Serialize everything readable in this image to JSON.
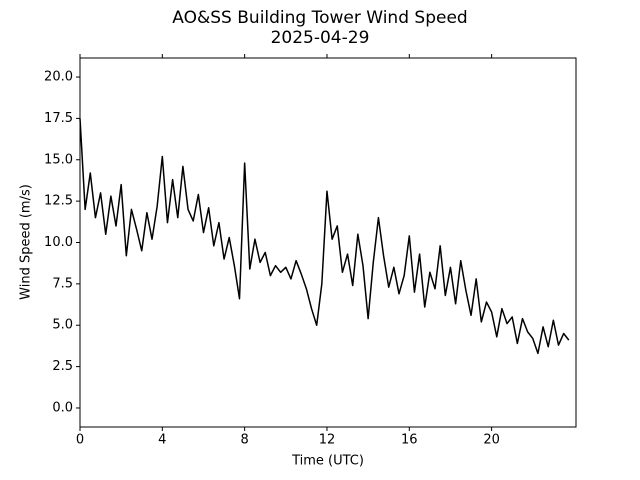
{
  "chart_data": {
    "type": "line",
    "title": "AO&SS Building Tower Wind Speed",
    "subtitle": "2025-04-29",
    "x_label": "Time (UTC)",
    "y_label": "Wind Speed (m/s)",
    "x": [
      0,
      0.25,
      0.5,
      0.75,
      1,
      1.25,
      1.5,
      1.75,
      2,
      2.25,
      2.5,
      2.75,
      3,
      3.25,
      3.5,
      3.75,
      4,
      4.25,
      4.5,
      4.75,
      5,
      5.25,
      5.5,
      5.75,
      6,
      6.25,
      6.5,
      6.75,
      7,
      7.25,
      7.5,
      7.75,
      8,
      8.25,
      8.5,
      8.75,
      9,
      9.25,
      9.5,
      9.75,
      10,
      10.25,
      10.5,
      10.75,
      11,
      11.25,
      11.5,
      11.75,
      12,
      12.25,
      12.5,
      12.75,
      13,
      13.25,
      13.5,
      13.75,
      14,
      14.25,
      14.5,
      14.75,
      15,
      15.25,
      15.5,
      15.75,
      16,
      16.25,
      16.5,
      16.75,
      17,
      17.25,
      17.5,
      17.75,
      18,
      18.25,
      18.5,
      18.75,
      19,
      19.25,
      19.5,
      19.75,
      20,
      20.25,
      20.5,
      20.75,
      21,
      21.25,
      21.5,
      21.75,
      22,
      22.25,
      22.5,
      22.75,
      23,
      23.25,
      23.5,
      23.75
    ],
    "series": [
      {
        "color": "#000000",
        "values": [
          17.5,
          12.0,
          14.2,
          11.5,
          13.0,
          10.5,
          12.8,
          11.0,
          13.5,
          9.2,
          12.0,
          10.8,
          9.5,
          11.8,
          10.2,
          12.2,
          15.2,
          11.2,
          13.8,
          11.5,
          14.6,
          12.0,
          11.3,
          12.9,
          10.6,
          12.1,
          9.8,
          11.2,
          9.0,
          10.3,
          8.6,
          6.6,
          14.8,
          8.4,
          10.2,
          8.8,
          9.4,
          8.0,
          8.6,
          8.2,
          8.5,
          7.8,
          8.9,
          8.1,
          7.2,
          6.0,
          5.0,
          7.5,
          13.1,
          10.2,
          11.0,
          8.2,
          9.3,
          7.4,
          10.5,
          8.6,
          5.4,
          8.8,
          11.5,
          9.2,
          7.3,
          8.5,
          6.9,
          8.0,
          10.4,
          7.0,
          9.3,
          6.1,
          8.2,
          7.2,
          9.8,
          6.8,
          8.5,
          6.3,
          8.9,
          7.1,
          5.6,
          7.8,
          5.2,
          6.4,
          5.8,
          4.3,
          6.0,
          5.1,
          5.5,
          3.9,
          5.4,
          4.6,
          4.2,
          3.3,
          4.9,
          3.7,
          5.3,
          3.8,
          4.5,
          4.1
        ]
      }
    ],
    "xlim": [
      0,
      24.1
    ],
    "ylim": [
      -1.15,
      21.15
    ],
    "xticks": [
      0,
      4,
      8,
      12,
      16,
      20
    ],
    "yticks": [
      {
        "value": 0,
        "label": "0.0"
      },
      {
        "value": 2.5,
        "label": "2.5"
      },
      {
        "value": 5,
        "label": "5.0"
      },
      {
        "value": 7.5,
        "label": "7.5"
      },
      {
        "value": 10,
        "label": "10.0"
      },
      {
        "value": 12.5,
        "label": "12.5"
      },
      {
        "value": 15,
        "label": "15.0"
      },
      {
        "value": 17.5,
        "label": "17.5"
      },
      {
        "value": 20,
        "label": "20.0"
      }
    ],
    "grid": false
  }
}
